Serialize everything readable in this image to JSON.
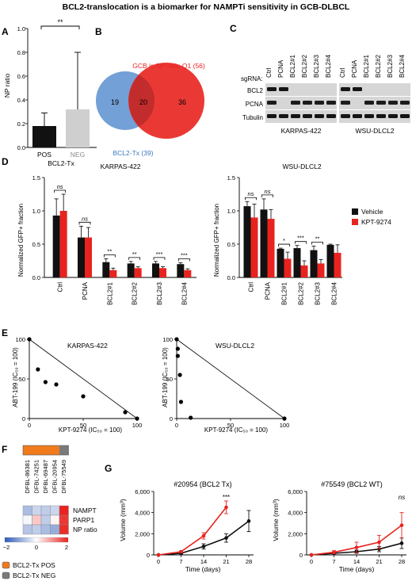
{
  "figure_title": "BCL2-translocation is a biomarker for NAMPTi sensitivity in GCB-DLBCL",
  "colors": {
    "red": "#e8231f",
    "black": "#111111",
    "gray": "#cfcfcf",
    "venn_red": "#e8231f",
    "venn_blue": "#6b9bd4",
    "heat_orange": "#f07b1c",
    "heat_gray": "#7a7a7a"
  },
  "panels": {
    "A": {
      "letter": "A",
      "ylabel": "NP ratio",
      "xlabel": "BCL2-Tx",
      "significance": "**",
      "ticks": [
        "0.0",
        "0.2",
        "0.4",
        "0.6",
        "0.8",
        "1.0"
      ],
      "chart_data": {
        "type": "bar",
        "categories": [
          "POS",
          "NEG"
        ],
        "values": [
          0.18,
          0.32
        ],
        "errors": [
          0.11,
          0.48
        ],
        "ylim": [
          0,
          1.0
        ],
        "ylabel": "NP ratio",
        "xlabel": "BCL2-Tx"
      }
    },
    "B": {
      "letter": "B",
      "red_label": "GCB in NP ratio Q1 (56)",
      "blue_label": "BCL2-Tx (39)",
      "blue_only": "19",
      "overlap": "20",
      "red_only": "36"
    },
    "C": {
      "letter": "C",
      "sgrna_label": "sgRNA:",
      "lanes": [
        "Ctrl",
        "PCNA",
        "BCL2#1",
        "BCL2#2",
        "BCL2#3",
        "BCL2#4"
      ],
      "rows": [
        "BCL2",
        "PCNA",
        "Tubulin"
      ],
      "cell_lines": [
        "KARPAS-422",
        "WSU-DLCL2"
      ]
    },
    "D": {
      "letter": "D",
      "ylabel": "Normalized GFP+ fraction",
      "ticks": [
        "0.0",
        "0.5",
        "1.0",
        "1.5"
      ],
      "legend": [
        "Vehicle",
        "KPT-9274"
      ],
      "charts": [
        {
          "title": "KARPAS-422",
          "chart_data": {
            "type": "bar",
            "categories": [
              "Ctrl",
              "PCNA",
              "BCL2#1",
              "BCL2#2",
              "BCL2#3",
              "BCL2#4"
            ],
            "series": [
              {
                "name": "Vehicle",
                "values": [
                  0.93,
                  0.6,
                  0.23,
                  0.21,
                  0.21,
                  0.2
                ],
                "errors": [
                  0.25,
                  0.17,
                  0.05,
                  0.03,
                  0.03,
                  0.02
                ]
              },
              {
                "name": "KPT-9274",
                "values": [
                  1.0,
                  0.6,
                  0.11,
                  0.14,
                  0.14,
                  0.11
                ],
                "errors": [
                  0.25,
                  0.15,
                  0.03,
                  0.02,
                  0.02,
                  0.02
                ]
              }
            ],
            "significance": [
              "ns",
              "ns",
              "**",
              "**",
              "***",
              "***"
            ],
            "ylim": [
              0,
              1.5
            ]
          }
        },
        {
          "title": "WSU-DLCL2",
          "chart_data": {
            "type": "bar",
            "categories": [
              "Ctrl",
              "PCNA",
              "BCL2#1",
              "BCL2#2",
              "BCL2#3",
              "BCL2#4"
            ],
            "series": [
              {
                "name": "Vehicle",
                "values": [
                  1.07,
                  1.02,
                  0.43,
                  0.44,
                  0.41,
                  0.49
                ],
                "errors": [
                  0.07,
                  0.16,
                  0.01,
                  0.04,
                  0.06,
                  0.01
                ]
              },
              {
                "name": "KPT-9274",
                "values": [
                  0.9,
                  0.88,
                  0.28,
                  0.18,
                  0.21,
                  0.37
                ],
                "errors": [
                  0.2,
                  0.14,
                  0.1,
                  0.07,
                  0.06,
                  0.12
                ]
              }
            ],
            "significance": [
              "ns",
              "ns",
              "*",
              "***",
              "**",
              ""
            ],
            "ylim": [
              0,
              1.5
            ]
          }
        }
      ]
    },
    "E": {
      "letter": "E",
      "ylabel": "ABT-199 (IC₅₀ = 100)",
      "xlabel": "KPT-9274 (IC₅₀ = 100)",
      "ticks": [
        "0",
        "50",
        "100"
      ],
      "charts": [
        {
          "title": "KARPAS-422",
          "chart_data": {
            "type": "scatter",
            "points": [
              [
                0,
                100
              ],
              [
                8,
                62
              ],
              [
                15,
                46
              ],
              [
                25,
                43
              ],
              [
                50,
                28
              ],
              [
                89,
                8
              ],
              [
                100,
                0
              ]
            ],
            "xlim": [
              0,
              100
            ],
            "ylim": [
              0,
              100
            ]
          }
        },
        {
          "title": "WSU-DLCL2",
          "chart_data": {
            "type": "scatter",
            "points": [
              [
                0,
                100
              ],
              [
                1,
                88
              ],
              [
                1,
                79
              ],
              [
                3,
                55
              ],
              [
                4,
                21
              ],
              [
                13,
                1
              ],
              [
                100,
                0
              ]
            ],
            "xlim": [
              0,
              100
            ],
            "ylim": [
              0,
              100
            ]
          }
        }
      ]
    },
    "F": {
      "letter": "F",
      "samples": [
        "DFBL-86381",
        "DFBL-74251",
        "DFBL-69487",
        "DFBL-20954",
        "DFBL-75549"
      ],
      "rows": [
        "NAMPT",
        "PARP1",
        "NP ratio"
      ],
      "chart_data": {
        "type": "heatmap",
        "columns": [
          "DFBL-86381",
          "DFBL-74251",
          "DFBL-69487",
          "DFBL-20954",
          "DFBL-75549"
        ],
        "rows": [
          "NAMPT",
          "PARP1",
          "NP ratio"
        ],
        "values": [
          [
            -0.8,
            -0.5,
            -0.6,
            -0.5,
            2.0
          ],
          [
            -0.1,
            0.5,
            -0.6,
            0.1,
            1.8
          ],
          [
            -0.7,
            -0.6,
            -0.8,
            -1.0,
            1.9
          ]
        ],
        "annotation": [
          "POS",
          "POS",
          "POS",
          "POS",
          "NEG"
        ],
        "scale": [
          -2,
          2
        ]
      },
      "scale_labels": [
        "−2",
        "0",
        "2"
      ],
      "legend": [
        "BCL2-Tx POS",
        "BCL2-Tx NEG"
      ]
    },
    "G": {
      "letter": "G",
      "ylabel": "Volume (mm³)",
      "xlabel": "Time (days)",
      "yticks": [
        "0",
        "2,000",
        "4,000",
        "6,000"
      ],
      "xticks": [
        "0",
        "7",
        "14",
        "21",
        "28"
      ],
      "charts": [
        {
          "title": "#20954 (BCL2 Tx)",
          "chart_data": {
            "type": "line",
            "x": [
              0,
              7,
              14,
              21,
              28
            ],
            "series": [
              {
                "name": "Vehicle",
                "values": [
                  0,
                  150,
                  800,
                  1600,
                  3200
                ],
                "errors": [
                  0,
                  60,
                  250,
                  400,
                  1000
                ]
              },
              {
                "name": "KPT-9274",
                "values": [
                  0,
                  300,
                  1800,
                  4500,
                  null
                ],
                "errors": [
                  0,
                  80,
                  300,
                  600,
                  null
                ]
              }
            ],
            "annotation": {
              "x": 21,
              "text": "***"
            },
            "ylim": [
              0,
              6000
            ]
          }
        },
        {
          "title": "#75549 (BCL2 WT)",
          "chart_data": {
            "type": "line",
            "x": [
              0,
              7,
              14,
              21,
              28
            ],
            "series": [
              {
                "name": "Vehicle",
                "values": [
                  0,
                  150,
                  300,
                  550,
                  1100
                ],
                "errors": [
                  0,
                  60,
                  150,
                  250,
                  500
                ]
              },
              {
                "name": "KPT-9274",
                "values": [
                  0,
                  250,
                  700,
                  1200,
                  2800
                ],
                "errors": [
                  0,
                  150,
                  500,
                  650,
                  1200
                ]
              }
            ],
            "annotation": {
              "x": 28,
              "text": "ns"
            },
            "ylim": [
              0,
              6000
            ]
          }
        }
      ]
    }
  }
}
